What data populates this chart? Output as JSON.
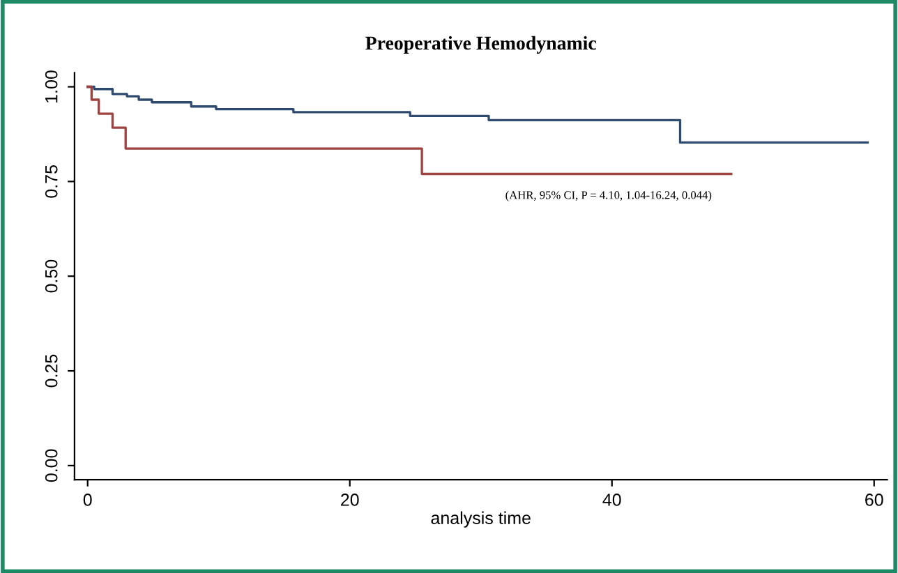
{
  "chart_data": {
    "type": "step",
    "title": "Preoperative Hemodynamic",
    "xlabel": "analysis time",
    "series": [
      {
        "color": "#2e4a6e",
        "x": [
          0,
          0.5,
          1.9,
          3.0,
          3.9,
          4.9,
          7.9,
          9.8,
          15.7,
          24.6,
          30.6,
          45.2,
          59.5
        ],
        "values": [
          1.0,
          0.994,
          0.981,
          0.975,
          0.966,
          0.959,
          0.948,
          0.941,
          0.933,
          0.923,
          0.912,
          0.853,
          0.853
        ]
      },
      {
        "color": "#a0423f",
        "x": [
          0,
          0.3,
          0.85,
          1.9,
          2.9,
          25.5,
          49.1
        ],
        "values": [
          1.0,
          0.966,
          0.929,
          0.892,
          0.837,
          0.77,
          0.77
        ]
      }
    ],
    "annotations": [
      "(AHR, 95% CI, P = 4.10, 1.04-16.24, 0.044)"
    ],
    "xlim": [
      -1,
      61
    ],
    "ylim": [
      -0.037,
      1.037
    ],
    "xticks": [
      0,
      20,
      40,
      60
    ],
    "yticks": [
      {
        "value": 0,
        "label": "0.00"
      },
      {
        "value": 0.25,
        "label": "0.25"
      },
      {
        "value": 0.5,
        "label": "0.50"
      },
      {
        "value": 0.75,
        "label": "0.75"
      },
      {
        "value": 1,
        "label": "1.00"
      }
    ],
    "grid": false,
    "legend": false
  }
}
